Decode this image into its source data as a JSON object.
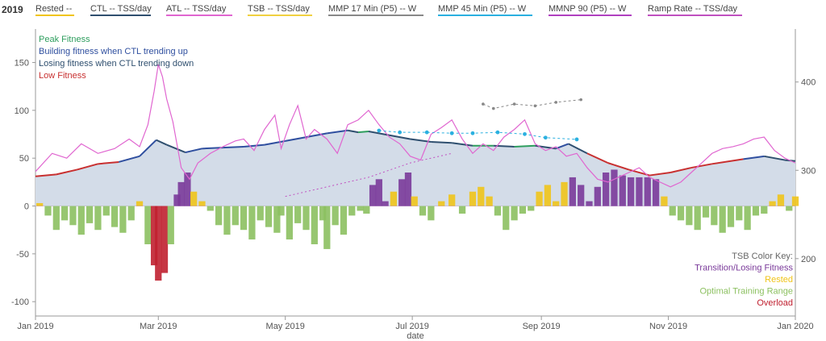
{
  "header": {
    "year": "2019"
  },
  "legend": [
    {
      "label": "Rested  --",
      "color": "#f0c419"
    },
    {
      "label": "CTL  -- TSS/day",
      "color": "#2f4f6f"
    },
    {
      "label": "ATL  -- TSS/day",
      "color": "#e066d0"
    },
    {
      "label": "TSB  -- TSS/day",
      "color": "#f0d040"
    },
    {
      "label": "MMP 17 Min (P5)  -- W",
      "color": "#888888"
    },
    {
      "label": "MMP 45 Min (P5)  -- W",
      "color": "#2ab0e0"
    },
    {
      "label": "MMNP 90 (P5)  -- W",
      "color": "#b040c0"
    },
    {
      "label": "Ramp Rate  -- TSS/day",
      "color": "#c050c0"
    }
  ],
  "chart_data": {
    "type": "line",
    "xlabel": "date",
    "x_ticks": [
      "Jan 2019",
      "Mar 2019",
      "May 2019",
      "Jul 2019",
      "Sep 2019",
      "Nov 2019",
      "Jan 2020"
    ],
    "x_tick_days": [
      0,
      59,
      120,
      181,
      243,
      304,
      365
    ],
    "xlim_days": [
      0,
      365
    ],
    "y_left": {
      "ylim": [
        -115,
        185
      ],
      "ticks": [
        -100,
        -50,
        0,
        50,
        100,
        150
      ]
    },
    "y_right": {
      "ylim": [
        135,
        460
      ],
      "ticks": [
        200,
        300,
        400
      ]
    },
    "ctl": [
      [
        0,
        31
      ],
      [
        10,
        33
      ],
      [
        20,
        38
      ],
      [
        30,
        44
      ],
      [
        40,
        46
      ],
      [
        50,
        52
      ],
      [
        58,
        69
      ],
      [
        63,
        64
      ],
      [
        72,
        56
      ],
      [
        80,
        60
      ],
      [
        90,
        61
      ],
      [
        100,
        62
      ],
      [
        110,
        64
      ],
      [
        120,
        68
      ],
      [
        130,
        72
      ],
      [
        140,
        76
      ],
      [
        150,
        79
      ],
      [
        155,
        77
      ],
      [
        160,
        78
      ],
      [
        170,
        74
      ],
      [
        180,
        70
      ],
      [
        190,
        67
      ],
      [
        200,
        66
      ],
      [
        210,
        63
      ],
      [
        220,
        63
      ],
      [
        230,
        62
      ],
      [
        240,
        63
      ],
      [
        250,
        60
      ],
      [
        256,
        65
      ],
      [
        265,
        55
      ],
      [
        275,
        45
      ],
      [
        285,
        38
      ],
      [
        295,
        32
      ],
      [
        305,
        35
      ],
      [
        315,
        40
      ],
      [
        325,
        44
      ],
      [
        340,
        49
      ],
      [
        350,
        52
      ],
      [
        360,
        48
      ],
      [
        365,
        47
      ]
    ],
    "tsb": [
      [
        2,
        3
      ],
      [
        6,
        -10
      ],
      [
        10,
        -25
      ],
      [
        14,
        -15
      ],
      [
        18,
        -20
      ],
      [
        22,
        -30
      ],
      [
        26,
        -18
      ],
      [
        30,
        -25
      ],
      [
        34,
        -10
      ],
      [
        38,
        -22
      ],
      [
        42,
        -28
      ],
      [
        46,
        -15
      ],
      [
        50,
        5
      ],
      [
        54,
        -40
      ],
      [
        57,
        -62
      ],
      [
        59,
        -78
      ],
      [
        62,
        -70
      ],
      [
        65,
        -40
      ],
      [
        68,
        12
      ],
      [
        70,
        25
      ],
      [
        73,
        35
      ],
      [
        76,
        15
      ],
      [
        80,
        5
      ],
      [
        84,
        -5
      ],
      [
        88,
        -20
      ],
      [
        92,
        -30
      ],
      [
        96,
        -20
      ],
      [
        100,
        -25
      ],
      [
        104,
        -35
      ],
      [
        108,
        -15
      ],
      [
        112,
        -22
      ],
      [
        116,
        -28
      ],
      [
        118,
        -10
      ],
      [
        122,
        -35
      ],
      [
        126,
        -18
      ],
      [
        130,
        -25
      ],
      [
        134,
        -40
      ],
      [
        138,
        -15
      ],
      [
        140,
        -45
      ],
      [
        144,
        -20
      ],
      [
        148,
        -30
      ],
      [
        152,
        -10
      ],
      [
        156,
        -5
      ],
      [
        159,
        -8
      ],
      [
        162,
        22
      ],
      [
        165,
        28
      ],
      [
        168,
        5
      ],
      [
        172,
        15
      ],
      [
        176,
        28
      ],
      [
        179,
        35
      ],
      [
        182,
        10
      ],
      [
        186,
        -10
      ],
      [
        190,
        -15
      ],
      [
        195,
        5
      ],
      [
        200,
        12
      ],
      [
        205,
        -8
      ],
      [
        210,
        15
      ],
      [
        214,
        20
      ],
      [
        218,
        10
      ],
      [
        222,
        -10
      ],
      [
        226,
        -25
      ],
      [
        230,
        -15
      ],
      [
        234,
        -8
      ],
      [
        238,
        -5
      ],
      [
        242,
        15
      ],
      [
        246,
        22
      ],
      [
        250,
        5
      ],
      [
        254,
        25
      ],
      [
        258,
        30
      ],
      [
        262,
        22
      ],
      [
        266,
        5
      ],
      [
        270,
        20
      ],
      [
        274,
        35
      ],
      [
        278,
        38
      ],
      [
        282,
        32
      ],
      [
        286,
        30
      ],
      [
        290,
        30
      ],
      [
        294,
        30
      ],
      [
        298,
        28
      ],
      [
        302,
        10
      ],
      [
        306,
        -10
      ],
      [
        310,
        -15
      ],
      [
        314,
        -20
      ],
      [
        318,
        -25
      ],
      [
        322,
        -12
      ],
      [
        326,
        -20
      ],
      [
        330,
        -28
      ],
      [
        334,
        -22
      ],
      [
        338,
        -15
      ],
      [
        342,
        -25
      ],
      [
        346,
        -10
      ],
      [
        350,
        -8
      ],
      [
        354,
        5
      ],
      [
        358,
        12
      ],
      [
        362,
        -5
      ],
      [
        365,
        10
      ]
    ],
    "atl": [
      [
        0,
        36
      ],
      [
        8,
        55
      ],
      [
        15,
        50
      ],
      [
        22,
        65
      ],
      [
        30,
        55
      ],
      [
        38,
        60
      ],
      [
        45,
        70
      ],
      [
        50,
        62
      ],
      [
        54,
        85
      ],
      [
        57,
        120
      ],
      [
        59,
        148
      ],
      [
        61,
        135
      ],
      [
        63,
        112
      ],
      [
        66,
        88
      ],
      [
        70,
        40
      ],
      [
        74,
        28
      ],
      [
        78,
        45
      ],
      [
        84,
        55
      ],
      [
        90,
        62
      ],
      [
        96,
        68
      ],
      [
        100,
        70
      ],
      [
        105,
        58
      ],
      [
        110,
        80
      ],
      [
        115,
        95
      ],
      [
        118,
        60
      ],
      [
        122,
        85
      ],
      [
        126,
        105
      ],
      [
        130,
        70
      ],
      [
        134,
        80
      ],
      [
        140,
        70
      ],
      [
        145,
        55
      ],
      [
        150,
        85
      ],
      [
        155,
        90
      ],
      [
        160,
        100
      ],
      [
        165,
        85
      ],
      [
        170,
        72
      ],
      [
        175,
        65
      ],
      [
        180,
        52
      ],
      [
        185,
        48
      ],
      [
        190,
        75
      ],
      [
        195,
        82
      ],
      [
        200,
        90
      ],
      [
        205,
        70
      ],
      [
        210,
        55
      ],
      [
        215,
        65
      ],
      [
        220,
        58
      ],
      [
        225,
        72
      ],
      [
        230,
        80
      ],
      [
        235,
        90
      ],
      [
        240,
        65
      ],
      [
        245,
        58
      ],
      [
        250,
        62
      ],
      [
        255,
        52
      ],
      [
        260,
        55
      ],
      [
        265,
        40
      ],
      [
        270,
        28
      ],
      [
        275,
        25
      ],
      [
        280,
        30
      ],
      [
        285,
        35
      ],
      [
        290,
        40
      ],
      [
        295,
        30
      ],
      [
        300,
        25
      ],
      [
        305,
        20
      ],
      [
        310,
        25
      ],
      [
        315,
        35
      ],
      [
        320,
        45
      ],
      [
        325,
        55
      ],
      [
        330,
        60
      ],
      [
        335,
        62
      ],
      [
        340,
        65
      ],
      [
        345,
        70
      ],
      [
        350,
        72
      ],
      [
        355,
        58
      ],
      [
        360,
        50
      ],
      [
        365,
        45
      ]
    ],
    "mmp17_right": [
      [
        215,
        375
      ],
      [
        220,
        370
      ],
      [
        230,
        375
      ],
      [
        240,
        373
      ],
      [
        250,
        377
      ],
      [
        262,
        380
      ]
    ],
    "mmp45_right": [
      [
        165,
        345
      ],
      [
        175,
        343
      ],
      [
        188,
        343
      ],
      [
        200,
        342
      ],
      [
        210,
        342
      ],
      [
        222,
        343
      ],
      [
        235,
        341
      ],
      [
        245,
        337
      ],
      [
        260,
        335
      ]
    ],
    "ramp_dashes": [
      [
        120,
        10
      ],
      [
        140,
        20
      ],
      [
        160,
        30
      ],
      [
        180,
        45
      ],
      [
        200,
        55
      ]
    ],
    "annotations_top": [
      "Peak Fitness",
      "Building fitness when CTL trending up",
      "Losing fitness when CTL trending down",
      "Low Fitness"
    ],
    "tsb_color_key": [
      "TSB Color Key:",
      "Transition/Losing Fitness",
      "Rested",
      "Optimal Training Range",
      "Overload"
    ],
    "colors": {
      "ctl_fill": "#d3dce8",
      "ctl_line": "#2f4f6f",
      "peak": "#2e9e5e",
      "building": "#2f4f9f",
      "losing": "#2f4f6f",
      "low": "#c83030",
      "atl": "#e066d0",
      "rested": "#f0c419",
      "transition": "#7a3a9a",
      "optimal": "#8cc060",
      "overload": "#c02030",
      "mmp17": "#888888",
      "mmp45": "#2ab0e0"
    }
  }
}
